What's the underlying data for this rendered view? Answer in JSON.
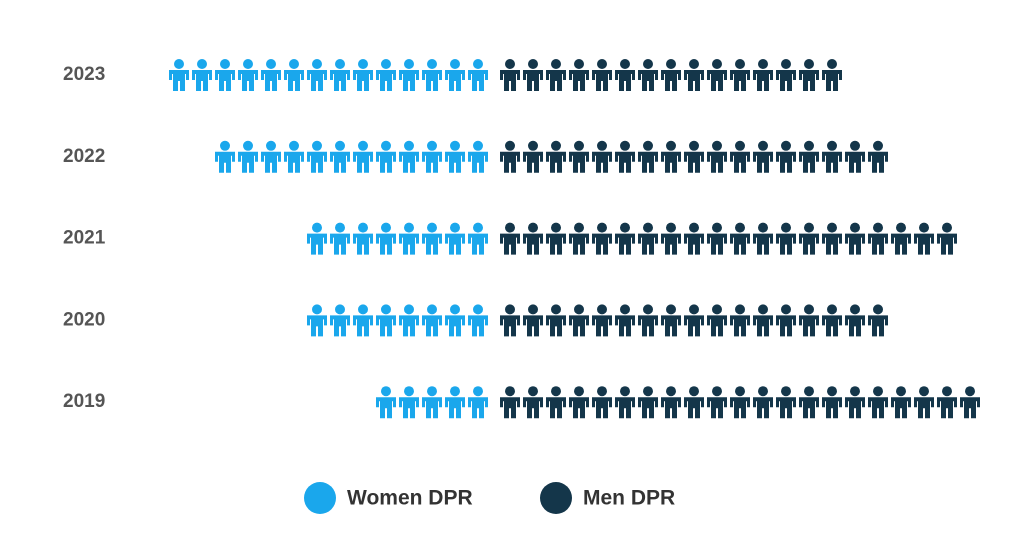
{
  "chart_data": {
    "type": "pictogram",
    "categories": [
      "2023",
      "2022",
      "2021",
      "2020",
      "2019"
    ],
    "series": [
      {
        "name": "Women DPR",
        "color": "#1aa7ec",
        "values": [
          14,
          12,
          8,
          8,
          5
        ]
      },
      {
        "name": "Men DPR",
        "color": "#14364a",
        "values": [
          15,
          17,
          20,
          17,
          21
        ]
      }
    ]
  }
}
